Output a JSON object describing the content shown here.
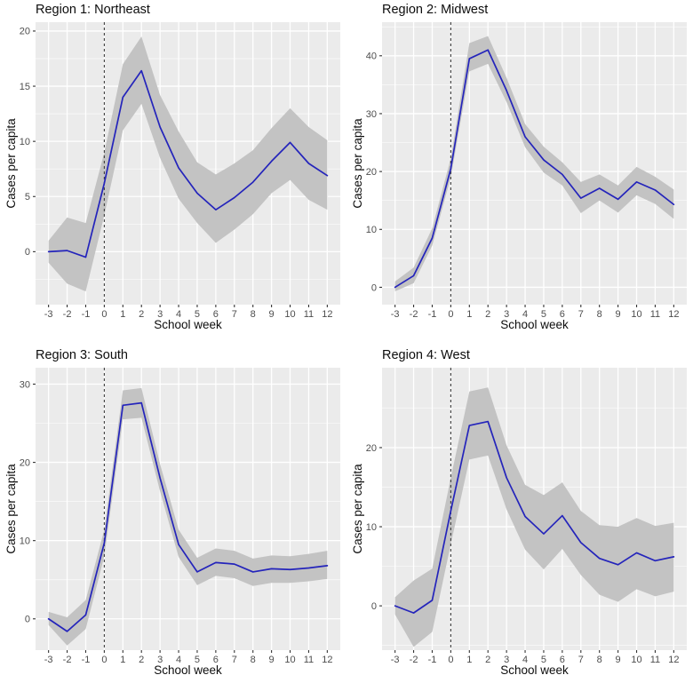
{
  "figure": {
    "xlabel": "School week",
    "ylabel": "Cases per capita"
  },
  "style": {
    "page_bg": "#ffffff",
    "panel_bg": "#ebebeb",
    "grid_major": "#ffffff",
    "grid_minor": "#ffffff",
    "band_color": "#c3c3c3",
    "line_color": "#2424bb",
    "vline_color": "#3c3c3c",
    "tick_label_color": "#4d4d4d",
    "tick_mark_color": "#333333",
    "title_color": "#0d0d0d"
  },
  "chart_data": [
    {
      "type": "line",
      "title": "Region 1: Northeast",
      "xlabel": "School week",
      "ylabel": "Cases per capita",
      "legend": "none",
      "grid": true,
      "vline_x": 0,
      "x": [
        -3,
        -2,
        -1,
        0,
        1,
        2,
        3,
        4,
        5,
        6,
        7,
        8,
        9,
        10,
        11,
        12
      ],
      "x_breaks": [
        -3,
        -2,
        -1,
        0,
        1,
        2,
        3,
        4,
        5,
        6,
        7,
        8,
        9,
        10,
        11,
        12
      ],
      "y_breaks": [
        0,
        5,
        10,
        15,
        20
      ],
      "xlim": [
        -3.7,
        12.7
      ],
      "ylim": [
        -4.8,
        20.8
      ],
      "series": [
        {
          "name": "cases_per_capita",
          "values": [
            0,
            0.1,
            -0.5,
            6.2,
            14,
            16.4,
            11.3,
            7.6,
            5.3,
            3.8,
            4.9,
            6.3,
            8.2,
            9.9,
            8,
            6.9
          ]
        }
      ],
      "band": {
        "lower": [
          -1,
          -2.9,
          -3.6,
          3.3,
          11,
          13.4,
          8.5,
          4.8,
          2.6,
          0.8,
          2,
          3.4,
          5.3,
          6.5,
          4.7,
          3.8
        ],
        "upper": [
          1,
          3.1,
          2.6,
          9,
          17,
          19.5,
          14.2,
          10.9,
          8.1,
          7,
          8,
          9.2,
          11.2,
          13,
          11.3,
          10.1
        ]
      }
    },
    {
      "type": "line",
      "title": "Region 2: Midwest",
      "xlabel": "School week",
      "ylabel": "Cases per capita",
      "legend": "none",
      "grid": true,
      "vline_x": 0,
      "x": [
        -3,
        -2,
        -1,
        0,
        1,
        2,
        3,
        4,
        5,
        6,
        7,
        8,
        9,
        10,
        11,
        12
      ],
      "x_breaks": [
        -3,
        -2,
        -1,
        0,
        1,
        2,
        3,
        4,
        5,
        6,
        7,
        8,
        9,
        10,
        11,
        12
      ],
      "y_breaks": [
        0,
        10,
        20,
        30,
        40
      ],
      "xlim": [
        -3.7,
        12.7
      ],
      "ylim": [
        -3,
        45.8
      ],
      "series": [
        {
          "name": "cases_per_capita",
          "values": [
            0,
            2,
            8.5,
            20.5,
            39.5,
            41,
            34,
            26,
            22,
            19.5,
            15.4,
            17.1,
            15.2,
            18.2,
            16.8,
            14.3
          ]
        }
      ],
      "band": {
        "lower": [
          -0.7,
          0.7,
          7.2,
          19,
          37.3,
          38.6,
          32,
          24.2,
          19.8,
          17.6,
          12.8,
          15,
          12.9,
          15.9,
          14.4,
          11.8
        ],
        "upper": [
          1,
          3.4,
          10.2,
          22.3,
          42.2,
          43.4,
          36.2,
          28.2,
          24.3,
          21.6,
          18.2,
          19.5,
          17.6,
          20.8,
          19.1,
          16.9
        ]
      }
    },
    {
      "type": "line",
      "title": "Region 3: South",
      "xlabel": "School week",
      "ylabel": "Cases per capita",
      "legend": "none",
      "grid": true,
      "vline_x": 0,
      "x": [
        -3,
        -2,
        -1,
        0,
        1,
        2,
        3,
        4,
        5,
        6,
        7,
        8,
        9,
        10,
        11,
        12
      ],
      "x_breaks": [
        -3,
        -2,
        -1,
        0,
        1,
        2,
        3,
        4,
        5,
        6,
        7,
        8,
        9,
        10,
        11,
        12
      ],
      "y_breaks": [
        0,
        10,
        20,
        30
      ],
      "xlim": [
        -3.7,
        12.7
      ],
      "ylim": [
        -4,
        32.1
      ],
      "series": [
        {
          "name": "cases_per_capita",
          "values": [
            0,
            -1.6,
            0.5,
            9.7,
            27.3,
            27.6,
            18,
            9.5,
            6,
            7.2,
            7,
            6,
            6.4,
            6.3,
            6.5,
            6.8
          ]
        }
      ],
      "band": {
        "lower": [
          -0.8,
          -3.4,
          -1.3,
          8,
          25.5,
          25.7,
          16.3,
          7.9,
          4.3,
          5.5,
          5.2,
          4.2,
          4.6,
          4.6,
          4.8,
          5.1
        ],
        "upper": [
          0.9,
          0.2,
          2.4,
          11.4,
          29.2,
          29.5,
          19.8,
          11.4,
          7.8,
          9,
          8.7,
          7.7,
          8.1,
          8,
          8.3,
          8.7
        ]
      }
    },
    {
      "type": "line",
      "title": "Region 4: West",
      "xlabel": "School week",
      "ylabel": "Cases per capita",
      "legend": "none",
      "grid": true,
      "vline_x": 0,
      "x": [
        -3,
        -2,
        -1,
        0,
        1,
        2,
        3,
        4,
        5,
        6,
        7,
        8,
        9,
        10,
        11,
        12
      ],
      "x_breaks": [
        -3,
        -2,
        -1,
        0,
        1,
        2,
        3,
        4,
        5,
        6,
        7,
        8,
        9,
        10,
        11,
        12
      ],
      "y_breaks": [
        0,
        10,
        20
      ],
      "xlim": [
        -3.7,
        12.7
      ],
      "ylim": [
        -5.6,
        30.1
      ],
      "series": [
        {
          "name": "cases_per_capita",
          "values": [
            0,
            -0.9,
            0.7,
            12,
            22.8,
            23.3,
            16.2,
            11.3,
            9.1,
            11.4,
            8,
            6,
            5.2,
            6.7,
            5.7,
            6.2
          ]
        }
      ],
      "band": {
        "lower": [
          -1.1,
          -5.2,
          -3.3,
          7.8,
          18.5,
          19,
          12.2,
          7.1,
          4.6,
          7.2,
          3.9,
          1.4,
          0.5,
          2.1,
          1.2,
          1.8
        ],
        "upper": [
          1.1,
          3.2,
          4.7,
          16.2,
          27.1,
          27.6,
          20.3,
          15.3,
          14,
          15.6,
          12,
          10.2,
          10,
          11.1,
          10.1,
          10.5
        ]
      }
    }
  ]
}
